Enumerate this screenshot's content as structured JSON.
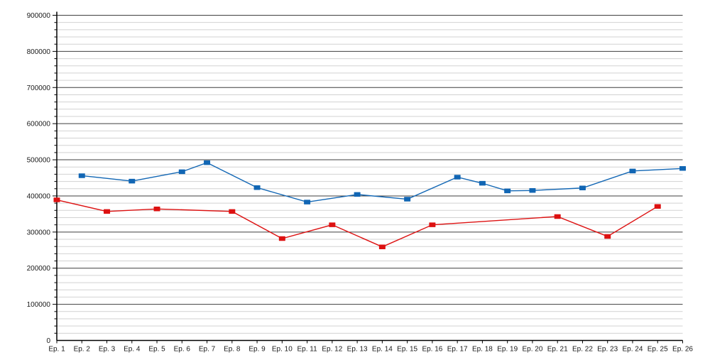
{
  "page": {
    "background_color": "#ffffff",
    "title": ""
  },
  "chart_data": {
    "type": "line",
    "title": "",
    "xlabel": "",
    "ylabel": "",
    "legend": "none",
    "grid": true,
    "marker_shape": "square",
    "x_categories": [
      "Ep. 1",
      "Ep. 2",
      "Ep. 3",
      "Ep. 4",
      "Ep. 5",
      "Ep. 6",
      "Ep. 7",
      "Ep. 8",
      "Ep. 9",
      "Ep. 10",
      "Ep. 11",
      "Ep. 12",
      "Ep. 13",
      "Ep. 14",
      "Ep. 15",
      "Ep. 16",
      "Ep. 17",
      "Ep. 18",
      "Ep. 19",
      "Ep. 20",
      "Ep. 21",
      "Ep. 22",
      "Ep. 23",
      "Ep. 24",
      "Ep. 25",
      "Ep. 26"
    ],
    "y_axis": {
      "min": 0,
      "max": 900000,
      "major_step": 100000,
      "minor_step": 20000,
      "tick_labels": [
        "0",
        "100000",
        "200000",
        "300000",
        "400000",
        "500000",
        "600000",
        "700000",
        "800000",
        "900000"
      ]
    },
    "series": [
      {
        "name": "blue-series",
        "color": "#1166b4",
        "values": [
          null,
          456000,
          null,
          441000,
          null,
          467000,
          492000,
          null,
          423000,
          null,
          383000,
          null,
          404000,
          null,
          391000,
          null,
          452000,
          435000,
          414000,
          415000,
          null,
          422000,
          null,
          469000,
          null,
          476000
        ]
      },
      {
        "name": "red-series",
        "color": "#dd1111",
        "values": [
          389000,
          null,
          357000,
          null,
          364000,
          null,
          null,
          357000,
          null,
          282000,
          null,
          320000,
          null,
          259000,
          null,
          320000,
          null,
          null,
          null,
          null,
          343000,
          null,
          288000,
          null,
          371000,
          null
        ]
      }
    ],
    "style": {
      "major_grid_color": "#3f3f3f",
      "minor_grid_color": "#d2d2d2",
      "axis_color": "#000000",
      "text_color": "#1a1a1a"
    }
  }
}
